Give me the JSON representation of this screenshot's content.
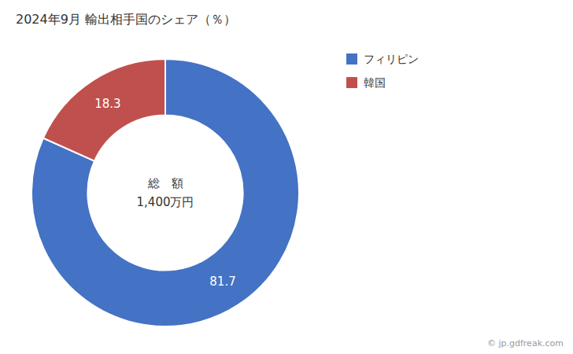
{
  "chart_data": {
    "type": "donut",
    "title": "2024年9月 輸出相手国のシェア（％）",
    "categories": [
      "フィリピン",
      "韓国"
    ],
    "values": [
      81.7,
      18.3
    ],
    "colors": [
      "#4472C4",
      "#C0504D"
    ],
    "data_labels": true,
    "legend": "upper right",
    "annotations": [
      "総　額",
      "1,400万円"
    ],
    "source": "© jp.gdfreak.com"
  }
}
